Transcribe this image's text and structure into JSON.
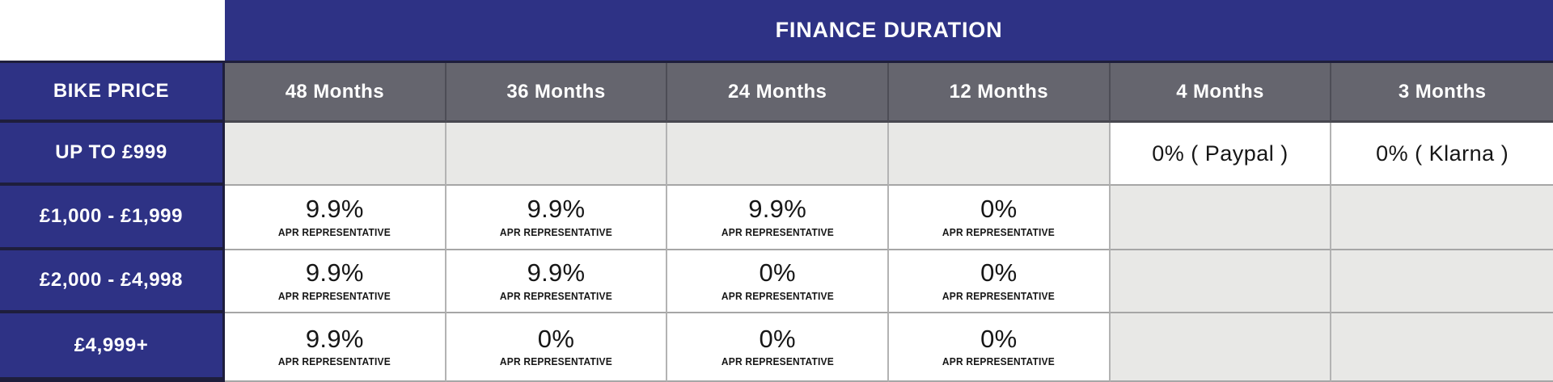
{
  "colors": {
    "navy": "#2e3285",
    "header_gray": "#65656e",
    "empty_cell_gray": "#e8e8e6",
    "dark_border": "#1e1e3c",
    "light_border": "#b3b3b3",
    "text_dark": "#161616",
    "text_white": "#ffffff"
  },
  "table": {
    "title": "FINANCE DURATION",
    "corner_label": "BIKE PRICE",
    "columns": [
      {
        "label": "48 Months"
      },
      {
        "label": "36 Months"
      },
      {
        "label": "24 Months"
      },
      {
        "label": "12 Months"
      },
      {
        "label": "4 Months"
      },
      {
        "label": "3 Months"
      }
    ],
    "rows": [
      {
        "label": "UP TO £999",
        "cells": [
          {
            "type": "empty"
          },
          {
            "type": "empty"
          },
          {
            "type": "empty"
          },
          {
            "type": "empty"
          },
          {
            "type": "value",
            "main": "0% ( Paypal )"
          },
          {
            "type": "value",
            "main": "0% ( Klarna )"
          }
        ]
      },
      {
        "label": "£1,000 - £1,999",
        "cells": [
          {
            "type": "apr",
            "main": "9.9%",
            "sub": "APR REPRESENTATIVE"
          },
          {
            "type": "apr",
            "main": "9.9%",
            "sub": "APR REPRESENTATIVE"
          },
          {
            "type": "apr",
            "main": "9.9%",
            "sub": "APR REPRESENTATIVE"
          },
          {
            "type": "apr",
            "main": "0%",
            "sub": "APR REPRESENTATIVE"
          },
          {
            "type": "empty"
          },
          {
            "type": "empty"
          }
        ]
      },
      {
        "label": "£2,000 - £4,998",
        "cells": [
          {
            "type": "apr",
            "main": "9.9%",
            "sub": "APR REPRESENTATIVE"
          },
          {
            "type": "apr",
            "main": "9.9%",
            "sub": "APR REPRESENTATIVE"
          },
          {
            "type": "apr",
            "main": "0%",
            "sub": "APR REPRESENTATIVE"
          },
          {
            "type": "apr",
            "main": "0%",
            "sub": "APR REPRESENTATIVE"
          },
          {
            "type": "empty"
          },
          {
            "type": "empty"
          }
        ]
      },
      {
        "label": "£4,999+",
        "cells": [
          {
            "type": "apr",
            "main": "9.9%",
            "sub": "APR REPRESENTATIVE"
          },
          {
            "type": "apr",
            "main": "0%",
            "sub": "APR REPRESENTATIVE"
          },
          {
            "type": "apr",
            "main": "0%",
            "sub": "APR REPRESENTATIVE"
          },
          {
            "type": "apr",
            "main": "0%",
            "sub": "APR REPRESENTATIVE"
          },
          {
            "type": "empty"
          },
          {
            "type": "empty"
          }
        ]
      }
    ]
  },
  "chart_data": {
    "type": "table",
    "title": "FINANCE DURATION",
    "row_header": "BIKE PRICE",
    "columns": [
      "48 Months",
      "36 Months",
      "24 Months",
      "12 Months",
      "4 Months",
      "3 Months"
    ],
    "rows": [
      {
        "bike_price": "UP TO £999",
        "values": [
          "",
          "",
          "",
          "",
          "0% ( Paypal )",
          "0% ( Klarna )"
        ]
      },
      {
        "bike_price": "£1,000 - £1,999",
        "values": [
          "9.9% APR REPRESENTATIVE",
          "9.9% APR REPRESENTATIVE",
          "9.9% APR REPRESENTATIVE",
          "0% APR REPRESENTATIVE",
          "",
          ""
        ]
      },
      {
        "bike_price": "£2,000 - £4,998",
        "values": [
          "9.9% APR REPRESENTATIVE",
          "9.9% APR REPRESENTATIVE",
          "0% APR REPRESENTATIVE",
          "0% APR REPRESENTATIVE",
          "",
          ""
        ]
      },
      {
        "bike_price": "£4,999+",
        "values": [
          "9.9% APR REPRESENTATIVE",
          "0% APR REPRESENTATIVE",
          "0% APR REPRESENTATIVE",
          "0% APR REPRESENTATIVE",
          "",
          ""
        ]
      }
    ]
  }
}
